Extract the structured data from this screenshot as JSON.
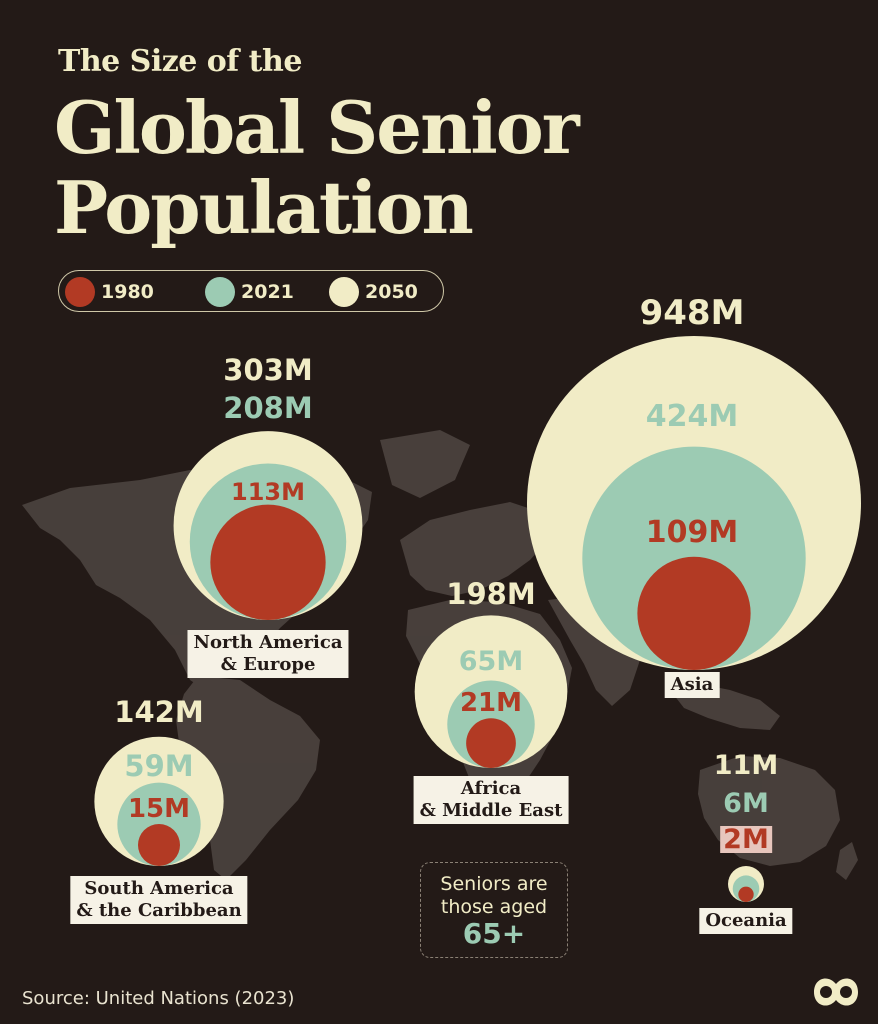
{
  "title": {
    "line_small": "The Size of the",
    "line_big_1": "Global Senior",
    "line_big_2": "Population"
  },
  "legend": [
    {
      "label": "1980",
      "color": "#b23a24"
    },
    {
      "label": "2021",
      "color": "#9ccbb3"
    },
    {
      "label": "2050",
      "color": "#f1ecc6"
    }
  ],
  "colors": {
    "background": "#231a17",
    "map": "#4a413d",
    "y1980": "#b23a24",
    "y2021": "#9ccbb3",
    "y2050": "#f1ecc6"
  },
  "chart_data": {
    "type": "bubble",
    "title": "The Size of the Global Senior Population",
    "unit": "M",
    "years": [
      "1980",
      "2021",
      "2050"
    ],
    "regions": [
      {
        "name_line1": "North America",
        "name_line2": "& Europe",
        "values": [
          113,
          208,
          303
        ],
        "labels": [
          "113M",
          "208M",
          "303M"
        ]
      },
      {
        "name_line1": "Asia",
        "name_line2": "",
        "values": [
          109,
          424,
          948
        ],
        "labels": [
          "109M",
          "424M",
          "948M"
        ]
      },
      {
        "name_line1": "Africa",
        "name_line2": "& Middle East",
        "values": [
          21,
          65,
          198
        ],
        "labels": [
          "21M",
          "65M",
          "198M"
        ]
      },
      {
        "name_line1": "South America",
        "name_line2": "& the Caribbean",
        "values": [
          15,
          59,
          142
        ],
        "labels": [
          "15M",
          "59M",
          "142M"
        ]
      },
      {
        "name_line1": "Oceania",
        "name_line2": "",
        "values": [
          2,
          6,
          11
        ],
        "labels": [
          "2M",
          "6M",
          "11M"
        ]
      }
    ]
  },
  "note": {
    "line1": "Seniors are",
    "line2": "those aged",
    "age": "65+"
  },
  "source": "Source: United Nations (2023)",
  "logo_icon": "visual-capitalist-logo-icon"
}
